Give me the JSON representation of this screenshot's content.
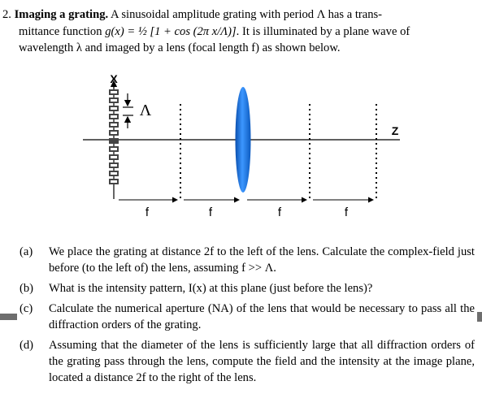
{
  "problem": {
    "number": "2.",
    "title": "Imaging a grating.",
    "line1": "A sinusoidal amplitude grating with period Λ has a trans-",
    "line2a": "mittance function ",
    "line2_func": "g(x) = ½ [1 + cos (2π x/Λ)]",
    "line2b": ". It is illuminated by a plane wave of",
    "line3": "wavelength λ and imaged by a lens (focal length f) as shown below."
  },
  "figure": {
    "x_axis_label": "X",
    "z_axis_label": "Z",
    "period_label": "Λ",
    "distance_labels": [
      "f",
      "f",
      "f",
      "f"
    ],
    "lens_color": "#1e78d8"
  },
  "parts": [
    {
      "label": "(a)",
      "text": "We place the grating at distance 2f to the left of the lens. Calculate the complex-field just before (to the left of) the lens, assuming f >> Λ."
    },
    {
      "label": "(b)",
      "text": "What is the intensity pattern, I(x) at this plane (just before the lens)?"
    },
    {
      "label": "(c)",
      "text": "Calculate the numerical aperture (NA) of the lens that would be necessary to pass all the diffraction orders of the grating."
    },
    {
      "label": "(d)",
      "text": "Assuming that the diameter of the lens is sufficiently large that all diffraction orders of the grating pass through the lens, compute the field and the intensity at the image plane, located a distance 2f to the right of the lens."
    }
  ]
}
